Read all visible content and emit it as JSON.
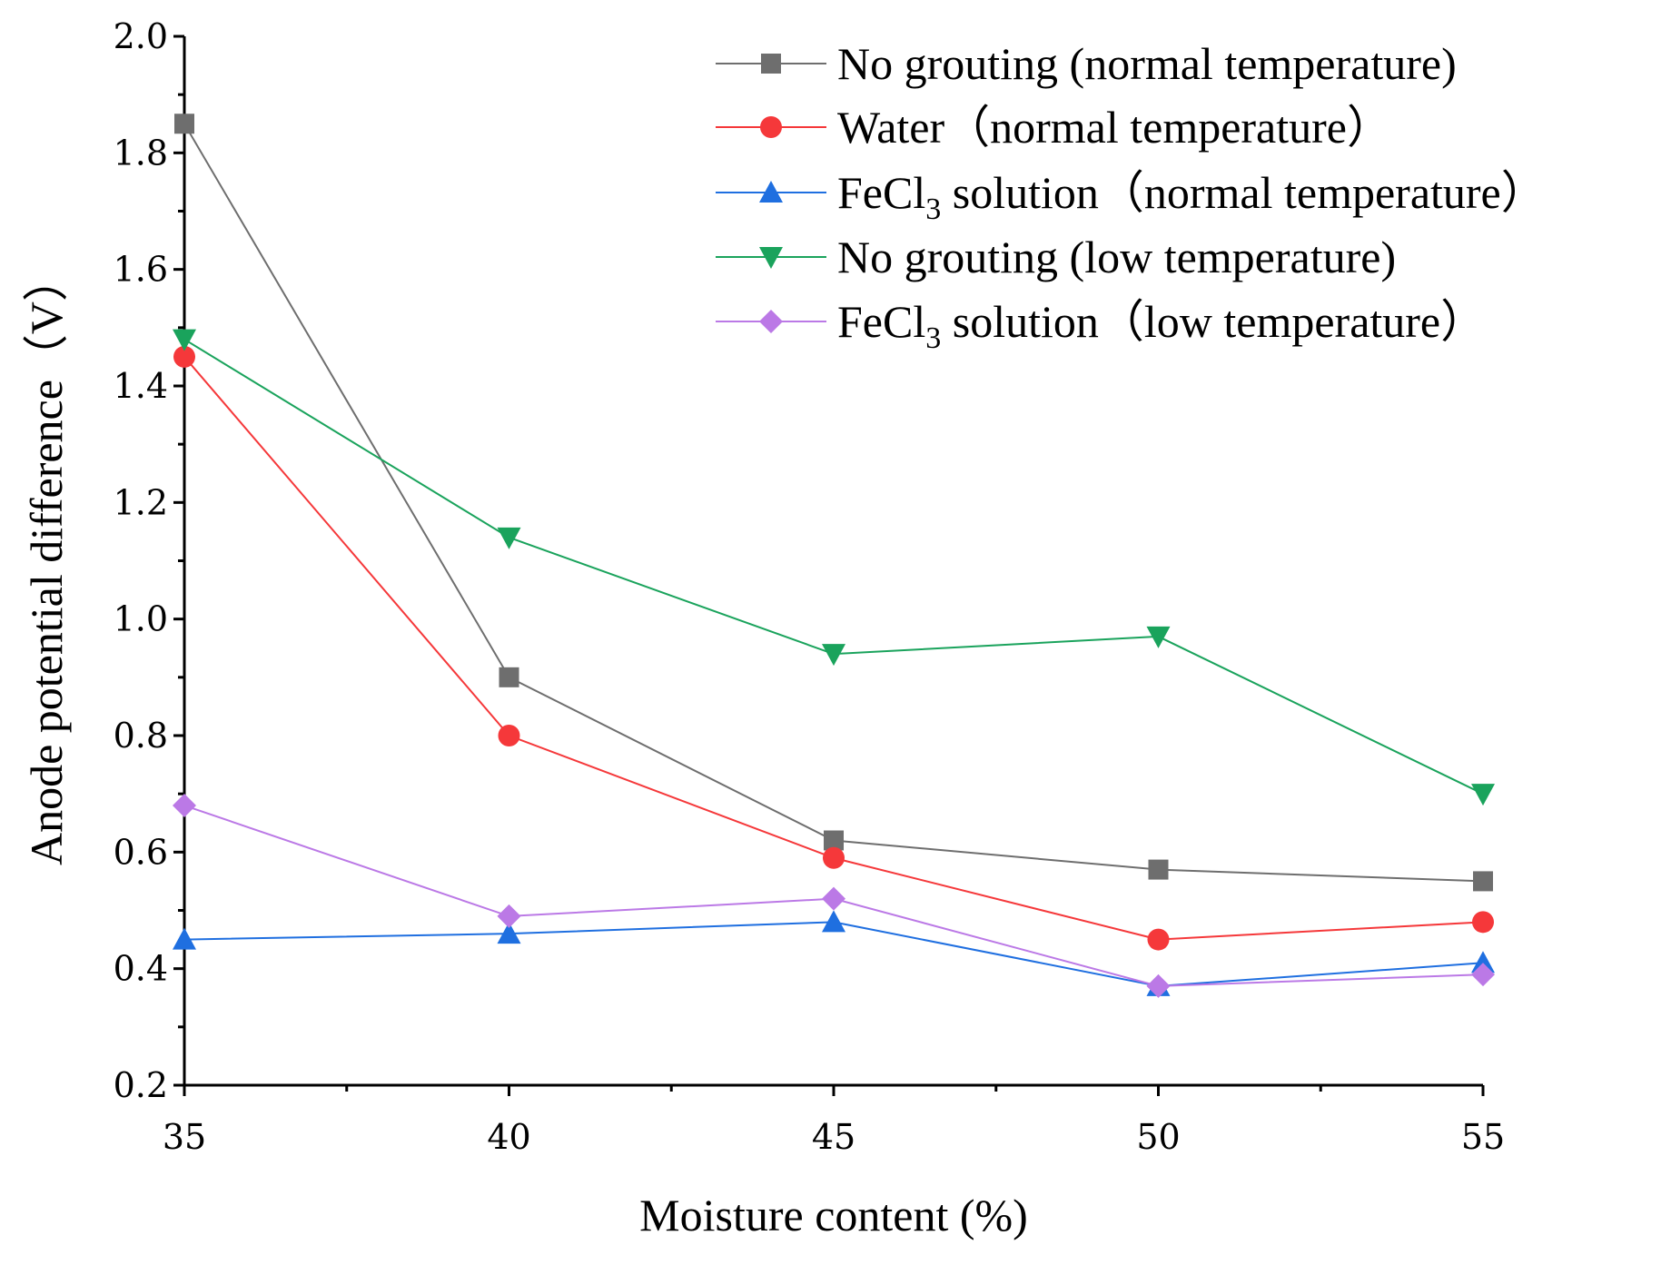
{
  "chart_data": {
    "type": "line",
    "title": "",
    "xlabel": "Moisture content (%)",
    "ylabel": "Anode potential difference（V）",
    "x": [
      35,
      40,
      45,
      50,
      55
    ],
    "xlim": [
      35,
      55
    ],
    "ylim": [
      0.2,
      2.0
    ],
    "xticks": [
      35,
      40,
      45,
      50,
      55
    ],
    "xtick_labels": [
      "35",
      "40",
      "45",
      "50",
      "55"
    ],
    "yticks": [
      0.2,
      0.4,
      0.6,
      0.8,
      1.0,
      1.2,
      1.4,
      1.6,
      1.8,
      2.0
    ],
    "ytick_labels": [
      "0.2",
      "0.4",
      "0.6",
      "0.8",
      "1.0",
      "1.2",
      "1.4",
      "1.6",
      "1.8",
      "2.0"
    ],
    "grid": false,
    "legend_position": "top-right",
    "series": [
      {
        "name": "No grouting (normal temperature)",
        "legend_parts": {
          "pre": "No grouting (normal temperature)",
          "sub": "",
          "post": ""
        },
        "color": "#6e6e6e",
        "marker": "square",
        "values": [
          1.85,
          0.9,
          0.62,
          0.57,
          0.55
        ]
      },
      {
        "name": "Water（normal temperature）",
        "legend_parts": {
          "pre": "Water（normal temperature）",
          "sub": "",
          "post": ""
        },
        "color": "#f5383a",
        "marker": "circle",
        "values": [
          1.45,
          0.8,
          0.59,
          0.45,
          0.48
        ]
      },
      {
        "name": "FeCl3 solution（normal temperature）",
        "legend_parts": {
          "pre": "FeCl",
          "sub": "3",
          "post": " solution（normal temperature）"
        },
        "color": "#1f6fe0",
        "marker": "triangle-up",
        "values": [
          0.45,
          0.46,
          0.48,
          0.37,
          0.41
        ]
      },
      {
        "name": "No grouting (low temperature)",
        "legend_parts": {
          "pre": "No grouting (low temperature)",
          "sub": "",
          "post": ""
        },
        "color": "#1aa35c",
        "marker": "triangle-down",
        "values": [
          1.48,
          1.14,
          0.94,
          0.97,
          0.7
        ]
      },
      {
        "name": "FeCl3 solution（low temperature）",
        "legend_parts": {
          "pre": "FeCl",
          "sub": "3",
          "post": " solution（low temperature）"
        },
        "color": "#bb79e6",
        "marker": "diamond",
        "values": [
          0.68,
          0.49,
          0.52,
          0.37,
          0.39
        ]
      }
    ]
  }
}
